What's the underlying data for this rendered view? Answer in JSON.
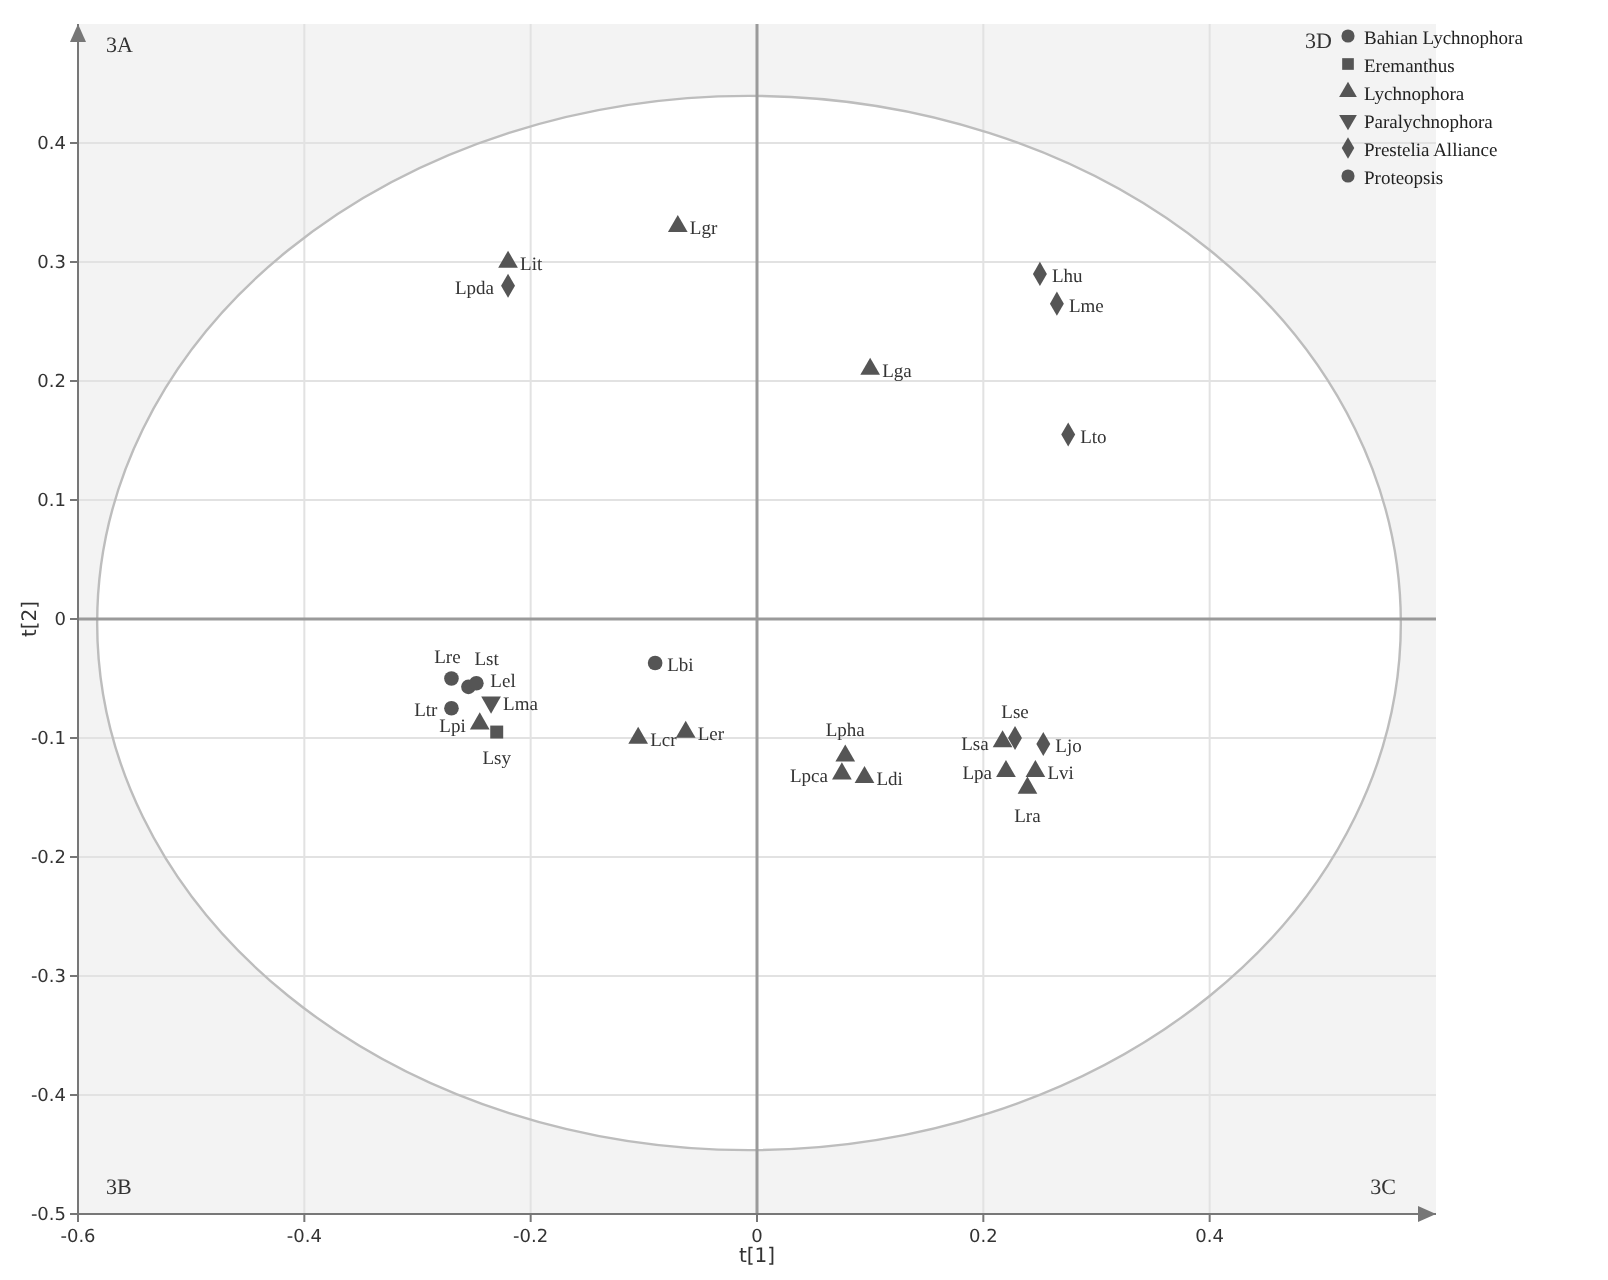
{
  "chart_data": {
    "type": "scatter",
    "xlabel": "t[1]",
    "ylabel": "t[2]",
    "xlim": [
      -0.6,
      0.6
    ],
    "ylim": [
      -0.5,
      0.5
    ],
    "xticks": [
      -0.6,
      -0.4,
      -0.2,
      0,
      0.2,
      0.4
    ],
    "yticks": [
      -0.5,
      -0.4,
      -0.3,
      -0.2,
      -0.1,
      0,
      0.1,
      0.2,
      0.3,
      0.4
    ],
    "grid": true,
    "legend": "top right",
    "series": [
      {
        "name": "Bahian Lychnophora",
        "color": "#555555",
        "marker": "circle",
        "x": [
          -0.27,
          -0.255,
          -0.27,
          -0.09
        ],
        "values": [
          -0.05,
          -0.057,
          -0.075,
          -0.037
        ]
      },
      {
        "name": "Eremanthus",
        "color": "#555555",
        "marker": "square",
        "x": [
          -0.23
        ],
        "values": [
          -0.095
        ]
      },
      {
        "name": "Lychnophora",
        "color": "#555555",
        "marker": "triangle",
        "x": [
          -0.22,
          -0.07,
          0.1,
          -0.105,
          -0.063,
          -0.245,
          0.078,
          0.075,
          0.095,
          0.217,
          0.22,
          0.246,
          0.239
        ],
        "values": [
          0.3,
          0.33,
          0.21,
          -0.1,
          -0.095,
          -0.088,
          -0.115,
          -0.13,
          -0.133,
          -0.103,
          -0.128,
          -0.128,
          -0.142
        ]
      },
      {
        "name": "Paralychnophora",
        "color": "#555555",
        "marker": "triangle-down",
        "x": [
          -0.235
        ],
        "values": [
          -0.07
        ]
      },
      {
        "name": "Prestelia Alliance",
        "color": "#555555",
        "marker": "diamond",
        "x": [
          -0.22,
          0.25,
          0.265,
          0.275,
          0.228,
          0.253
        ],
        "values": [
          0.28,
          0.29,
          0.265,
          0.155,
          -0.1,
          -0.105
        ]
      },
      {
        "name": "Proteopsis",
        "color": "#555555",
        "marker": "circle",
        "x": [
          -0.248
        ],
        "values": [
          -0.054
        ]
      }
    ],
    "annotations": [
      "3A",
      "3B",
      "3C",
      "3D",
      {
        "text": "Lre",
        "x": -0.27,
        "y": -0.05
      },
      {
        "text": "Lst",
        "x": -0.255,
        "y": -0.057
      },
      {
        "text": "Ltr",
        "x": -0.27,
        "y": -0.075
      },
      {
        "text": "Lbi",
        "x": -0.09,
        "y": -0.037
      },
      {
        "text": "Lsy",
        "x": -0.23,
        "y": -0.095
      },
      {
        "text": "Lit",
        "x": -0.22,
        "y": 0.3
      },
      {
        "text": "Lgr",
        "x": -0.07,
        "y": 0.33
      },
      {
        "text": "Lga",
        "x": 0.1,
        "y": 0.21
      },
      {
        "text": "Lcr",
        "x": -0.105,
        "y": -0.1
      },
      {
        "text": "Ler",
        "x": -0.063,
        "y": -0.095
      },
      {
        "text": "Lpi",
        "x": -0.245,
        "y": -0.088
      },
      {
        "text": "Lpha",
        "x": 0.078,
        "y": -0.115
      },
      {
        "text": "Lpca",
        "x": 0.075,
        "y": -0.13
      },
      {
        "text": "Ldi",
        "x": 0.095,
        "y": -0.133
      },
      {
        "text": "Lsa",
        "x": 0.217,
        "y": -0.103
      },
      {
        "text": "Lpa",
        "x": 0.22,
        "y": -0.128
      },
      {
        "text": "Lvi",
        "x": 0.246,
        "y": -0.128
      },
      {
        "text": "Lra",
        "x": 0.239,
        "y": -0.142
      },
      {
        "text": "Lma",
        "x": -0.235,
        "y": -0.07
      },
      {
        "text": "Lpda",
        "x": -0.22,
        "y": 0.28
      },
      {
        "text": "Lhu",
        "x": 0.25,
        "y": 0.29
      },
      {
        "text": "Lme",
        "x": 0.265,
        "y": 0.265
      },
      {
        "text": "Lto",
        "x": 0.275,
        "y": 0.155
      },
      {
        "text": "Lse",
        "x": 0.228,
        "y": -0.1
      },
      {
        "text": "Ljo",
        "x": 0.253,
        "y": -0.105
      },
      {
        "text": "Lel",
        "x": -0.248,
        "y": -0.054
      }
    ]
  }
}
